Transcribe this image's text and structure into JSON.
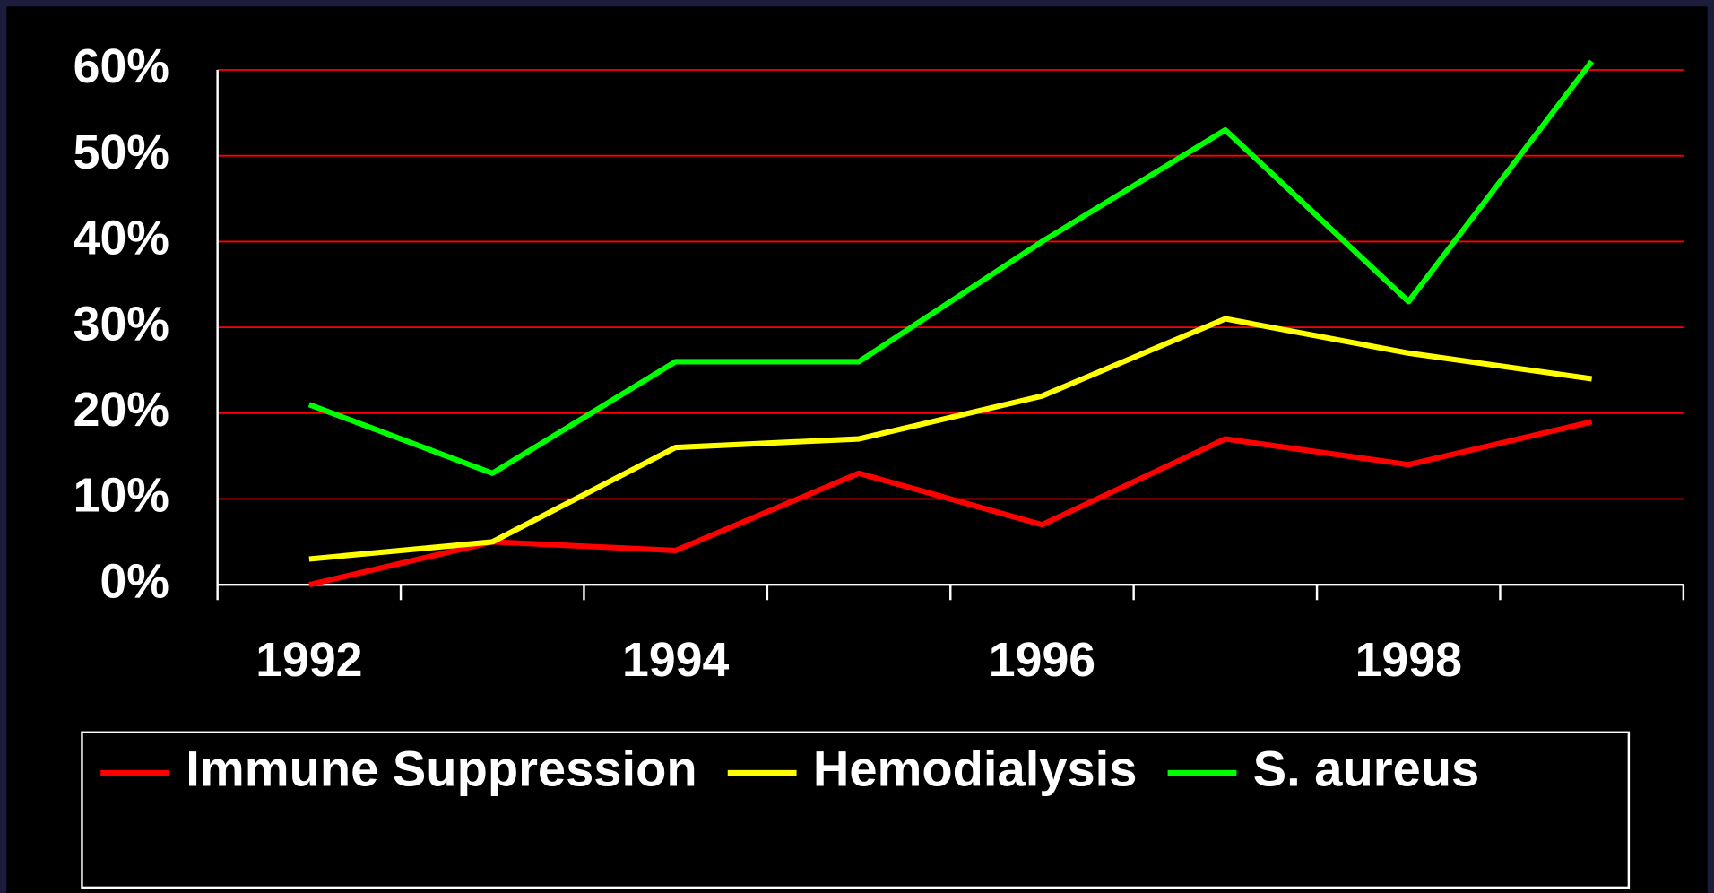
{
  "chart_data": {
    "type": "line",
    "categories": [
      "1992",
      null,
      "1994",
      null,
      "1996",
      null,
      "1998",
      null
    ],
    "series": [
      {
        "name": "Immune Suppression",
        "color": "#ff0000",
        "values": [
          0,
          5,
          4,
          13,
          7,
          17,
          14,
          19
        ]
      },
      {
        "name": "Hemodialysis",
        "color": "#ffff00",
        "values": [
          3,
          5,
          16,
          17,
          22,
          31,
          27,
          24
        ]
      },
      {
        "name": "S. aureus",
        "color": "#00ff00",
        "values": [
          21,
          13,
          26,
          26,
          40,
          53,
          33,
          61
        ]
      }
    ],
    "ylim": [
      0,
      60
    ],
    "yticks": [
      {
        "value": 0,
        "label": "0%"
      },
      {
        "value": 10,
        "label": "10%"
      },
      {
        "value": 20,
        "label": "20%"
      },
      {
        "value": 30,
        "label": "30%"
      },
      {
        "value": 40,
        "label": "40%"
      },
      {
        "value": 50,
        "label": "50%"
      },
      {
        "value": 60,
        "label": "60%"
      }
    ],
    "grid": true,
    "grid_color": "#ff0000",
    "legend": "bottom"
  }
}
